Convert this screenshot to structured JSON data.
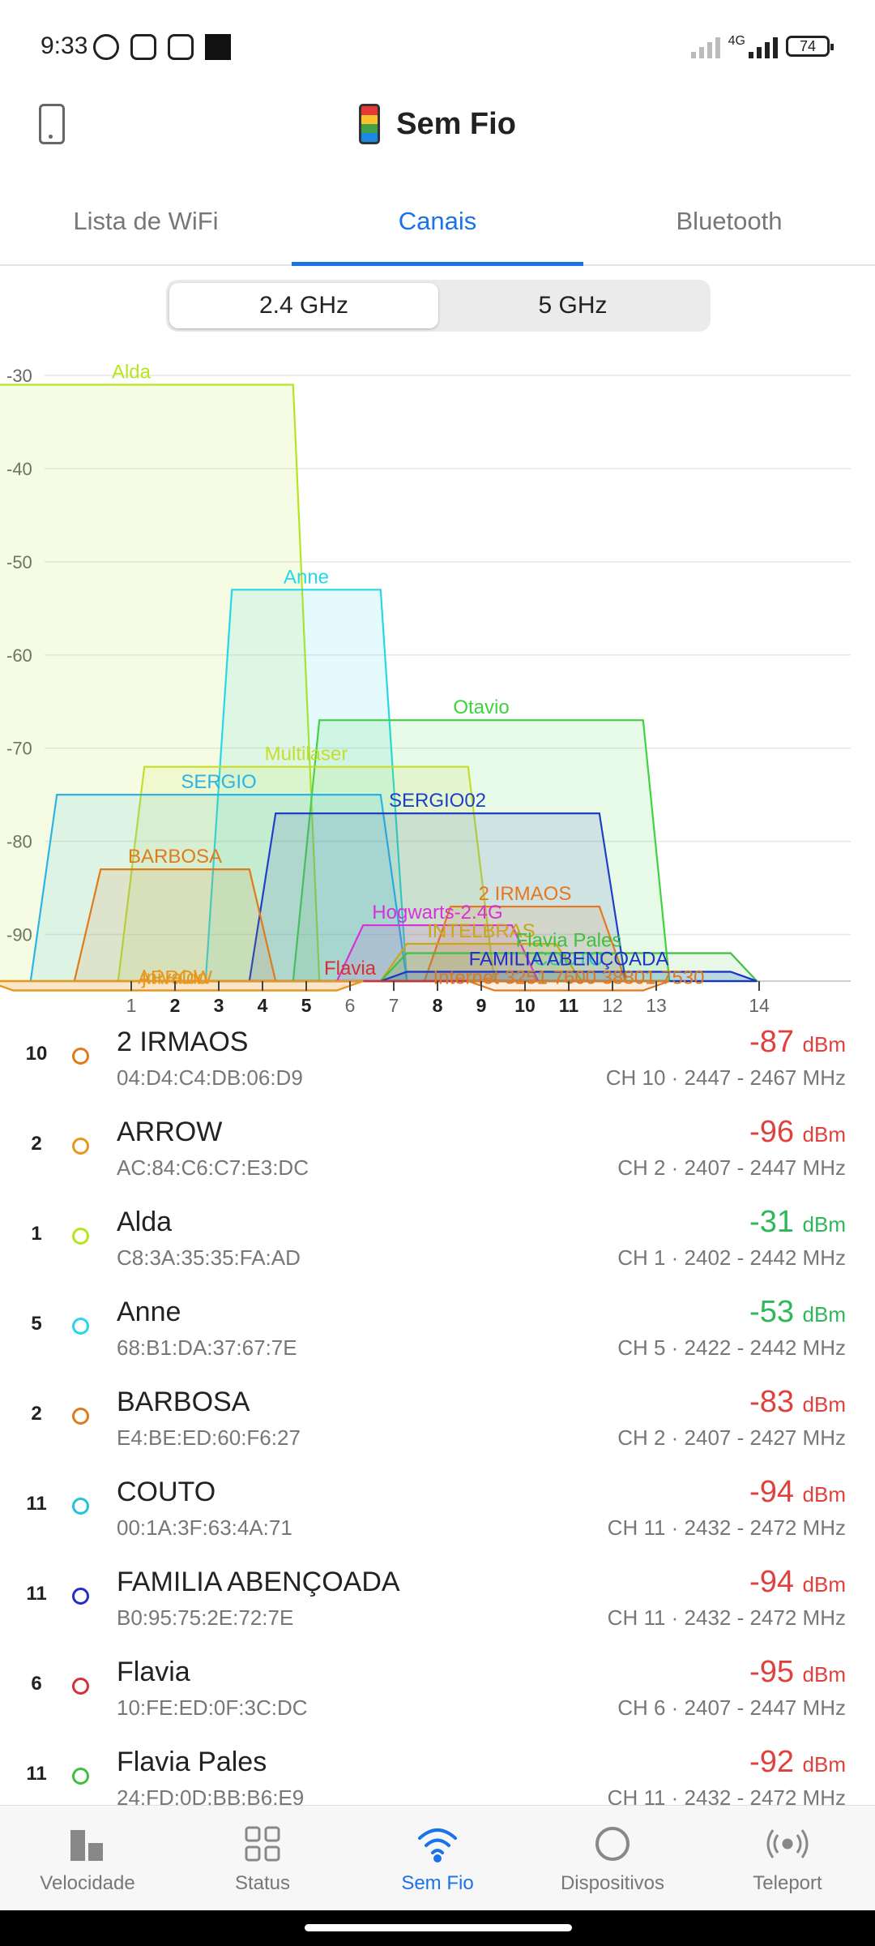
{
  "status_bar": {
    "time": "9:33",
    "battery": "74",
    "network": "4G"
  },
  "header": {
    "title": "Sem Fio",
    "logo_icon": "colorful-phone-logo-icon",
    "left_icon": "phone-icon"
  },
  "tabs": [
    {
      "label": "Lista de WiFi",
      "active": false
    },
    {
      "label": "Canais",
      "active": true
    },
    {
      "label": "Bluetooth",
      "active": false
    }
  ],
  "band_toggle": {
    "options": [
      "2.4 GHz",
      "5 GHz"
    ],
    "selected": "2.4 GHz"
  },
  "chart_data": {
    "type": "area",
    "ylim": [
      -95,
      -28
    ],
    "y_ticks": [
      -30,
      -40,
      -50,
      -60,
      -70,
      -80,
      -90
    ],
    "x_ticks": [
      {
        "label": "1",
        "ch": 1,
        "bold": false
      },
      {
        "label": "2",
        "ch": 2,
        "bold": true
      },
      {
        "label": "3",
        "ch": 3,
        "bold": true
      },
      {
        "label": "4",
        "ch": 4,
        "bold": true
      },
      {
        "label": "5",
        "ch": 5,
        "bold": true
      },
      {
        "label": "6",
        "ch": 6,
        "bold": false
      },
      {
        "label": "7",
        "ch": 7,
        "bold": false
      },
      {
        "label": "8",
        "ch": 8,
        "bold": true
      },
      {
        "label": "9",
        "ch": 9,
        "bold": true
      },
      {
        "label": "10",
        "ch": 10,
        "bold": true
      },
      {
        "label": "11",
        "ch": 11,
        "bold": true
      },
      {
        "label": "12",
        "ch": 12,
        "bold": false
      },
      {
        "label": "13",
        "ch": 13,
        "bold": false
      },
      {
        "label": "14",
        "ch": 14,
        "bold": false
      }
    ],
    "series": [
      {
        "name": "Alda",
        "channel": 1,
        "width": 40,
        "dbm": -31,
        "color": "#b5e61d"
      },
      {
        "name": "Anne",
        "channel": 5,
        "width": 20,
        "dbm": -53,
        "color": "#26d7e8"
      },
      {
        "name": "Otavio",
        "channel": 9,
        "width": 40,
        "dbm": -67,
        "color": "#3fd33f"
      },
      {
        "name": "Multilaser",
        "channel": 5,
        "width": 40,
        "dbm": -72,
        "color": "#c6dd2b"
      },
      {
        "name": "SERGIO",
        "channel": 3,
        "width": 40,
        "dbm": -75,
        "color": "#2cb4e6"
      },
      {
        "name": "SERGIO02",
        "channel": 8,
        "width": 40,
        "dbm": -77,
        "color": "#1f3fc8"
      },
      {
        "name": "BARBOSA",
        "channel": 2,
        "width": 20,
        "dbm": -83,
        "color": "#e07b1c"
      },
      {
        "name": "2 IRMAOS",
        "channel": 10,
        "width": 20,
        "dbm": -87,
        "color": "#e8761c"
      },
      {
        "name": "COUTO",
        "channel": 11,
        "width": 40,
        "dbm": -94,
        "color": "#1ec6d8"
      },
      {
        "name": "Hogwarts-2.4G",
        "channel": 8,
        "width": 20,
        "dbm": -89,
        "color": "#d930d9"
      },
      {
        "name": "INTELBRAS",
        "channel": 9,
        "width": 20,
        "dbm": -91,
        "color": "#c8a814"
      },
      {
        "name": "Flavia Pales",
        "channel": 11,
        "width": 40,
        "dbm": -92,
        "color": "#40c040"
      },
      {
        "name": "FAMILIA ABENÇOADA",
        "channel": 11,
        "width": 40,
        "dbm": -94,
        "color": "#2030c8"
      },
      {
        "name": "jnivaldo",
        "channel": 2,
        "width": 40,
        "dbm": -96,
        "color": "#e8961c"
      },
      {
        "name": "Flavia",
        "channel": 6,
        "width": 40,
        "dbm": -95,
        "color": "#d83030"
      },
      {
        "name": "ARROW",
        "channel": 2,
        "width": 40,
        "dbm": -96,
        "color": "#e8961c"
      },
      {
        "name": "Internet 3251 7600 38801 7530",
        "channel": 11,
        "width": 20,
        "dbm": -96,
        "color": "#e0781c"
      }
    ]
  },
  "networks": [
    {
      "channel": "10",
      "name": "2 IRMAOS",
      "mac": "04:D4:C4:DB:06:D9",
      "signal": "-87",
      "unit": "dBm",
      "info": "CH 10 · 2447 - 2467 MHz",
      "dot_color": "#e07b1c",
      "signal_color": "#e0413c"
    },
    {
      "channel": "2",
      "name": "ARROW",
      "mac": "AC:84:C6:C7:E3:DC",
      "signal": "-96",
      "unit": "dBm",
      "info": "CH 2 · 2407 - 2447 MHz",
      "dot_color": "#e8961c",
      "signal_color": "#e0413c"
    },
    {
      "channel": "1",
      "name": "Alda",
      "mac": "C8:3A:35:35:FA:AD",
      "signal": "-31",
      "unit": "dBm",
      "info": "CH 1 · 2402 - 2442 MHz",
      "dot_color": "#b5e61d",
      "signal_color": "#2fb85a"
    },
    {
      "channel": "5",
      "name": "Anne",
      "mac": "68:B1:DA:37:67:7E",
      "signal": "-53",
      "unit": "dBm",
      "info": "CH 5 · 2422 - 2442 MHz",
      "dot_color": "#26d7e8",
      "signal_color": "#2fb85a"
    },
    {
      "channel": "2",
      "name": "BARBOSA",
      "mac": "E4:BE:ED:60:F6:27",
      "signal": "-83",
      "unit": "dBm",
      "info": "CH 2 · 2407 - 2427 MHz",
      "dot_color": "#e07b1c",
      "signal_color": "#e0413c"
    },
    {
      "channel": "11",
      "name": "COUTO",
      "mac": "00:1A:3F:63:4A:71",
      "signal": "-94",
      "unit": "dBm",
      "info": "CH 11 · 2432 - 2472 MHz",
      "dot_color": "#1ec6d8",
      "signal_color": "#e0413c"
    },
    {
      "channel": "11",
      "name": "FAMILIA ABENÇOADA",
      "mac": "B0:95:75:2E:72:7E",
      "signal": "-94",
      "unit": "dBm",
      "info": "CH 11 · 2432 - 2472 MHz",
      "dot_color": "#2030c8",
      "signal_color": "#e0413c"
    },
    {
      "channel": "6",
      "name": "Flavia",
      "mac": "10:FE:ED:0F:3C:DC",
      "signal": "-95",
      "unit": "dBm",
      "info": "CH 6 · 2407 - 2447 MHz",
      "dot_color": "#d83030",
      "signal_color": "#e0413c"
    },
    {
      "channel": "11",
      "name": "Flavia Pales",
      "mac": "24:FD:0D:BB:B6:E9",
      "signal": "-92",
      "unit": "dBm",
      "info": "CH 11 · 2432 - 2472 MHz",
      "dot_color": "#40c040",
      "signal_color": "#e0413c"
    }
  ],
  "bottom_nav": [
    {
      "label": "Velocidade",
      "icon": "bar-chart-icon",
      "active": false
    },
    {
      "label": "Status",
      "icon": "grid-icon",
      "active": false
    },
    {
      "label": "Sem Fio",
      "icon": "wifi-icon",
      "active": true
    },
    {
      "label": "Dispositivos",
      "icon": "circle-icon",
      "active": false
    },
    {
      "label": "Teleport",
      "icon": "teleport-icon",
      "active": false
    }
  ]
}
